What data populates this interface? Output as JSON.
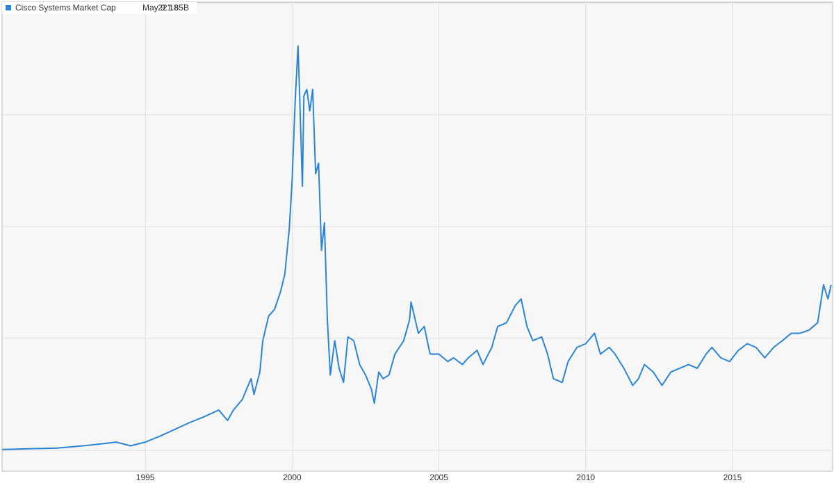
{
  "chart_data": {
    "type": "line",
    "x": [
      1990.12,
      1991,
      1992,
      1993,
      1993.8,
      1994.0,
      1994.5,
      1995,
      1995.5,
      1996,
      1996.5,
      1997,
      1997.5,
      1997.8,
      1998.0,
      1998.3,
      1998.6,
      1998.7,
      1998.9,
      1999.0,
      1999.2,
      1999.4,
      1999.6,
      1999.75,
      1999.9,
      2000.0,
      2000.1,
      2000.2,
      2000.25,
      2000.35,
      2000.4,
      2000.5,
      2000.6,
      2000.7,
      2000.8,
      2000.9,
      2001.0,
      2001.1,
      2001.2,
      2001.3,
      2001.45,
      2001.6,
      2001.75,
      2001.9,
      2002.1,
      2002.3,
      2002.5,
      2002.7,
      2002.8,
      2002.95,
      2003.1,
      2003.3,
      2003.5,
      2003.8,
      2004.0,
      2004.05,
      2004.3,
      2004.5,
      2004.7,
      2005.0,
      2005.3,
      2005.5,
      2005.8,
      2006.0,
      2006.3,
      2006.5,
      2006.8,
      2007.0,
      2007.3,
      2007.6,
      2007.8,
      2008.0,
      2008.2,
      2008.5,
      2008.7,
      2008.9,
      2009.2,
      2009.4,
      2009.7,
      2010.0,
      2010.3,
      2010.5,
      2010.8,
      2011.0,
      2011.3,
      2011.6,
      2011.8,
      2012.0,
      2012.3,
      2012.6,
      2012.9,
      2013.2,
      2013.5,
      2013.8,
      2014.1,
      2014.3,
      2014.6,
      2014.9,
      2015.2,
      2015.5,
      2015.8,
      2016.1,
      2016.4,
      2016.7,
      2017.0,
      2017.3,
      2017.6,
      2017.9,
      2018.1,
      2018.25,
      2018.36
    ],
    "series": [
      {
        "name": "Cisco Systems Market Cap",
        "color": "#2a84d6",
        "values": [
          1,
          2,
          3,
          6.5,
          10,
          11,
          6,
          11,
          19,
          28,
          37,
          45,
          54,
          40,
          54,
          68,
          96,
          75,
          105,
          147,
          180,
          189,
          212,
          236,
          296,
          362,
          465,
          542,
          484,
          354,
          475,
          484,
          455,
          484,
          371,
          385,
          268,
          305,
          175,
          101,
          147,
          110,
          91,
          152,
          147,
          115,
          101,
          82,
          63,
          105,
          96,
          101,
          129,
          147,
          175,
          199,
          157,
          166,
          129,
          129,
          119,
          124,
          115,
          124,
          134,
          115,
          138,
          166,
          171,
          194,
          203,
          166,
          147,
          152,
          129,
          96,
          91,
          119,
          138,
          143,
          157,
          129,
          138,
          129,
          110,
          87,
          96,
          115,
          105,
          87,
          105,
          110,
          115,
          110,
          129,
          138,
          124,
          119,
          134,
          143,
          138,
          124,
          138,
          147,
          157,
          157,
          161,
          171,
          222,
          203,
          221.85
        ]
      }
    ],
    "last_date": "May 9 '18",
    "last_value": 221.85,
    "last_value_label": "221.85B",
    "xlim": [
      1990.12,
      2018.41
    ],
    "xticks": [
      1995,
      2000,
      2005,
      2010,
      2015
    ],
    "ylim": [
      -28,
      601
    ],
    "ygrid": [
      0,
      150,
      300,
      450,
      600
    ],
    "grid": true
  }
}
